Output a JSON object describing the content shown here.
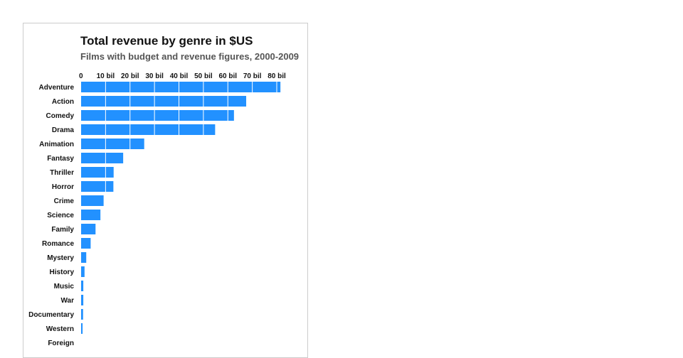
{
  "chart_data": {
    "type": "bar",
    "orientation": "horizontal",
    "title": "Total revenue by genre in $US",
    "subtitle": "Films with budget and revenue figures, 2000-2009",
    "xlabel": "",
    "ylabel": "",
    "xlim": [
      0,
      80
    ],
    "xticks": [
      {
        "value": 0,
        "label": "0"
      },
      {
        "value": 10,
        "label": "10 bil"
      },
      {
        "value": 20,
        "label": "20 bil"
      },
      {
        "value": 30,
        "label": "30 bil"
      },
      {
        "value": 40,
        "label": "40 bil"
      },
      {
        "value": 50,
        "label": "50 bil"
      },
      {
        "value": 60,
        "label": "60 bil"
      },
      {
        "value": 70,
        "label": "70 bil"
      },
      {
        "value": 80,
        "label": "80 bil"
      }
    ],
    "grid": true,
    "bar_color": "#2291ff",
    "categories": [
      "Adventure",
      "Action",
      "Comedy",
      "Drama",
      "Animation",
      "Fantasy",
      "Thriller",
      "Horror",
      "Crime",
      "Science",
      "Family",
      "Romance",
      "Mystery",
      "History",
      "Music",
      "War",
      "Documentary",
      "Western",
      "Foreign"
    ],
    "values": [
      81.5,
      67.5,
      62.5,
      54.8,
      25.8,
      17.2,
      13.3,
      13.2,
      9.2,
      7.9,
      5.9,
      3.9,
      2.1,
      1.4,
      0.9,
      0.9,
      0.8,
      0.6,
      0
    ]
  }
}
